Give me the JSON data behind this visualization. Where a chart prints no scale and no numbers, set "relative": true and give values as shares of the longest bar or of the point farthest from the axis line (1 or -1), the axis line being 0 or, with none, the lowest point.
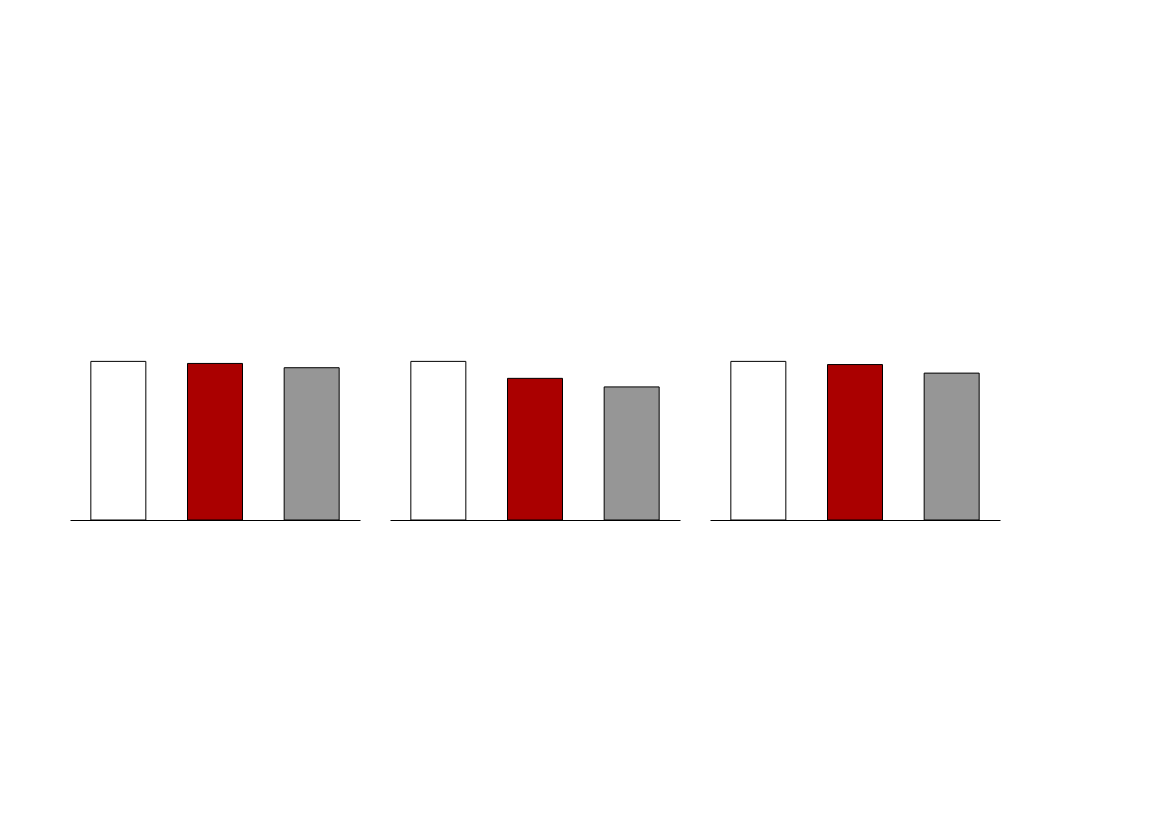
{
  "chart_data": [
    {
      "type": "bar",
      "relative": true,
      "categories": [
        null,
        null,
        null
      ],
      "values": [
        1,
        0.987,
        0.96
      ],
      "colors": [
        "#ffffff",
        "#aa0000",
        "#969696"
      ]
    },
    {
      "type": "bar",
      "relative": true,
      "categories": [
        null,
        null,
        null
      ],
      "values": [
        1,
        0.893,
        0.839
      ],
      "colors": [
        "#ffffff",
        "#aa0000",
        "#969696"
      ]
    },
    {
      "type": "bar",
      "relative": true,
      "categories": [
        null,
        null,
        null
      ],
      "values": [
        1,
        0.98,
        0.926
      ],
      "colors": [
        "#ffffff",
        "#aa0000",
        "#969696"
      ]
    }
  ]
}
